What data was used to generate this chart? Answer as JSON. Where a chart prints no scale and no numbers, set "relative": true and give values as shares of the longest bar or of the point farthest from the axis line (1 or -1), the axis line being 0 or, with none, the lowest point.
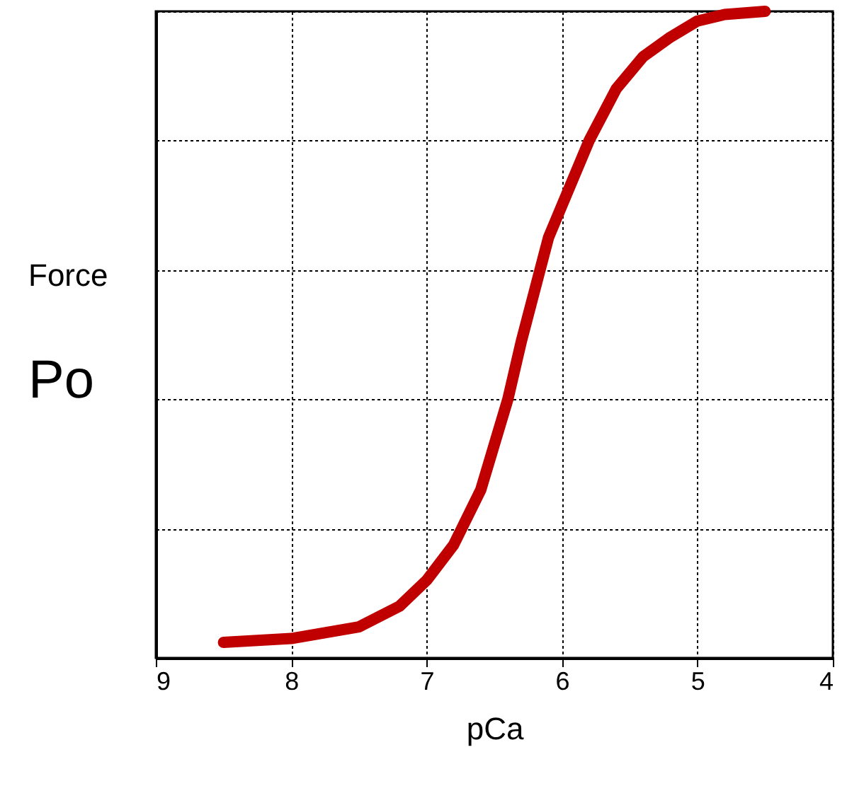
{
  "chart_data": {
    "type": "line",
    "xlabel": "pCa",
    "ylabel": "Force",
    "annotations": [
      "Po"
    ],
    "relative": true,
    "xlim": [
      9,
      4
    ],
    "xticks": [
      9,
      8,
      7,
      6,
      5,
      4
    ],
    "grid": true,
    "line_style": "solid",
    "x": [
      8.5,
      8.0,
      7.5,
      7.2,
      7.0,
      6.8,
      6.6,
      6.5,
      6.4,
      6.3,
      6.2,
      6.1,
      6.0,
      5.8,
      5.6,
      5.4,
      5.2,
      5.0,
      4.8,
      4.5
    ],
    "series": [
      {
        "color": "#c00000",
        "values": [
          0.024,
          0.03,
          0.048,
          0.08,
          0.12,
          0.175,
          0.26,
          0.33,
          0.4,
          0.49,
          0.57,
          0.65,
          0.7,
          0.8,
          0.88,
          0.93,
          0.96,
          0.985,
          0.995,
          1.0
        ]
      }
    ]
  }
}
